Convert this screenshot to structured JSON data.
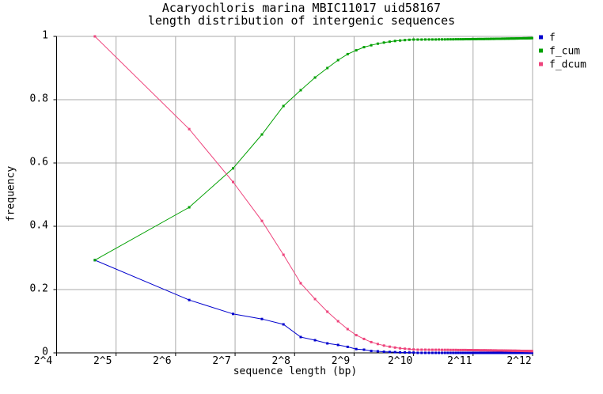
{
  "title": {
    "line1": "Acaryochloris marina MBIC11017 uid58167",
    "line2": "length distribution of intergenic sequences"
  },
  "axes": {
    "x_label": "sequence length (bp)",
    "y_label": "frequency",
    "x_scale": "log2",
    "x_range_log2": [
      4,
      12
    ],
    "x_tick_labels": [
      "2^4",
      "2^5",
      "2^6",
      "2^7",
      "2^8",
      "2^9",
      "2^10",
      "2^11",
      "2^12"
    ],
    "x_tick_log2": [
      4,
      5,
      6,
      7,
      8,
      9,
      10,
      11,
      12
    ],
    "y_range": [
      0,
      1
    ],
    "y_tick_labels": [
      "0",
      "0.2",
      "0.4",
      "0.6",
      "0.8",
      "1"
    ],
    "y_tick_values": [
      0,
      0.2,
      0.4,
      0.6,
      0.8,
      1
    ],
    "grid": true
  },
  "legend": {
    "position": "outside-top-right",
    "items": [
      {
        "label": "f",
        "color": "#0000cd",
        "marker": "square"
      },
      {
        "label": "f_cum",
        "color": "#00a000",
        "marker": "square"
      },
      {
        "label": "f_dcum",
        "color": "#ee447c",
        "marker": "square"
      }
    ]
  },
  "colors": {
    "grid": "#aaaaaa",
    "axis": "#000000",
    "background": "#ffffff"
  },
  "chart_data": {
    "type": "line",
    "title": "Acaryochloris marina MBIC11017 uid58167 — length distribution of intergenic sequences",
    "xlabel": "sequence length (bp)",
    "ylabel": "frequency",
    "x_axis": "log2, 2^4 to 2^12 bp",
    "ylim": [
      0,
      1
    ],
    "bin_width_bp": 50,
    "series_names": [
      "f",
      "f_cum",
      "f_dcum"
    ],
    "bins_bp_head": [
      25,
      75,
      125,
      175,
      225,
      275,
      325,
      375,
      425,
      475,
      525,
      575,
      625,
      675,
      725,
      775,
      825,
      875,
      925,
      975,
      1025
    ],
    "f_head": [
      0.293,
      0.167,
      0.123,
      0.107,
      0.09,
      0.05,
      0.04,
      0.03,
      0.025,
      0.019,
      0.012,
      0.01,
      0.006,
      0.005,
      0.0035,
      0.0028,
      0.0022,
      0.0016,
      0.0012,
      0.0009,
      0.0007
    ],
    "f_cum_head": [
      0.293,
      0.46,
      0.583,
      0.69,
      0.78,
      0.83,
      0.87,
      0.9,
      0.925,
      0.944,
      0.956,
      0.966,
      0.972,
      0.977,
      0.9805,
      0.9833,
      0.9855,
      0.9871,
      0.9883,
      0.9892,
      0.9899
    ],
    "f_dcum_head": [
      1.0,
      0.707,
      0.54,
      0.417,
      0.31,
      0.22,
      0.17,
      0.13,
      0.1,
      0.075,
      0.056,
      0.044,
      0.034,
      0.028,
      0.023,
      0.0195,
      0.0167,
      0.0145,
      0.0129,
      0.0117,
      0.0108
    ],
    "tail": {
      "from_bp": 1075,
      "to_bp": 4075,
      "step_bp": 50,
      "f_each": 7.54e-05
    },
    "derived": {
      "f_cum": "running cumulative sum of f",
      "f_dcum": "1 minus cumulative sum of f of all previous bins (decreasing cumulative)"
    }
  }
}
